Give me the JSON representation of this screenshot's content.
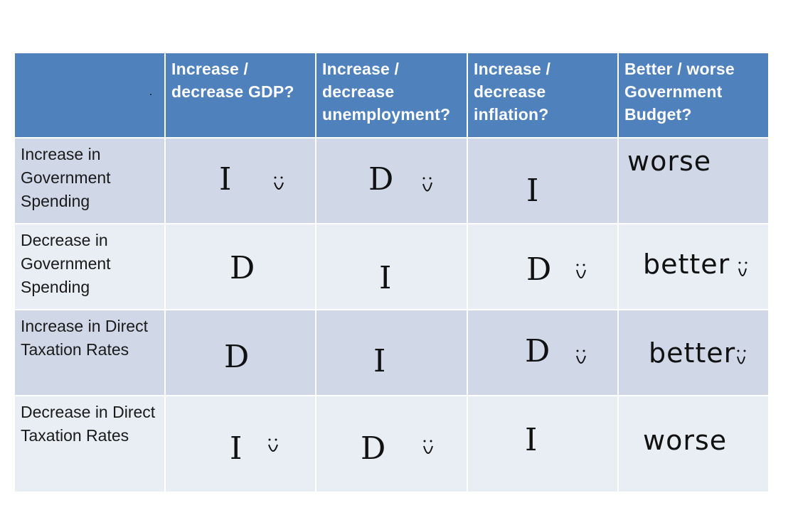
{
  "table": {
    "headers": [
      "",
      "Increase / decrease GDP?",
      "Increase / decrease unemployment?",
      "Increase / decrease inflation?",
      "Better / worse Government Budget?"
    ],
    "rows": [
      {
        "label": "Increase in Government Spending",
        "gdp": "I",
        "unemployment": "D",
        "inflation": "I",
        "budget": "worse"
      },
      {
        "label": "Decrease in Government Spending",
        "gdp": "D",
        "unemployment": "I",
        "inflation": "D",
        "budget": "better"
      },
      {
        "label": "Increase in Direct Taxation Rates",
        "gdp": "D",
        "unemployment": "I",
        "inflation": "D",
        "budget": "better"
      },
      {
        "label": "Decrease in Direct Taxation Rates",
        "gdp": "I",
        "unemployment": "D",
        "inflation": "I",
        "budget": "worse"
      }
    ]
  },
  "colors": {
    "header_bg": "#4f81bd",
    "row_odd_bg": "#d0d8e8",
    "row_even_bg": "#e9edf4"
  },
  "icons": [
    "smiley-icon"
  ]
}
